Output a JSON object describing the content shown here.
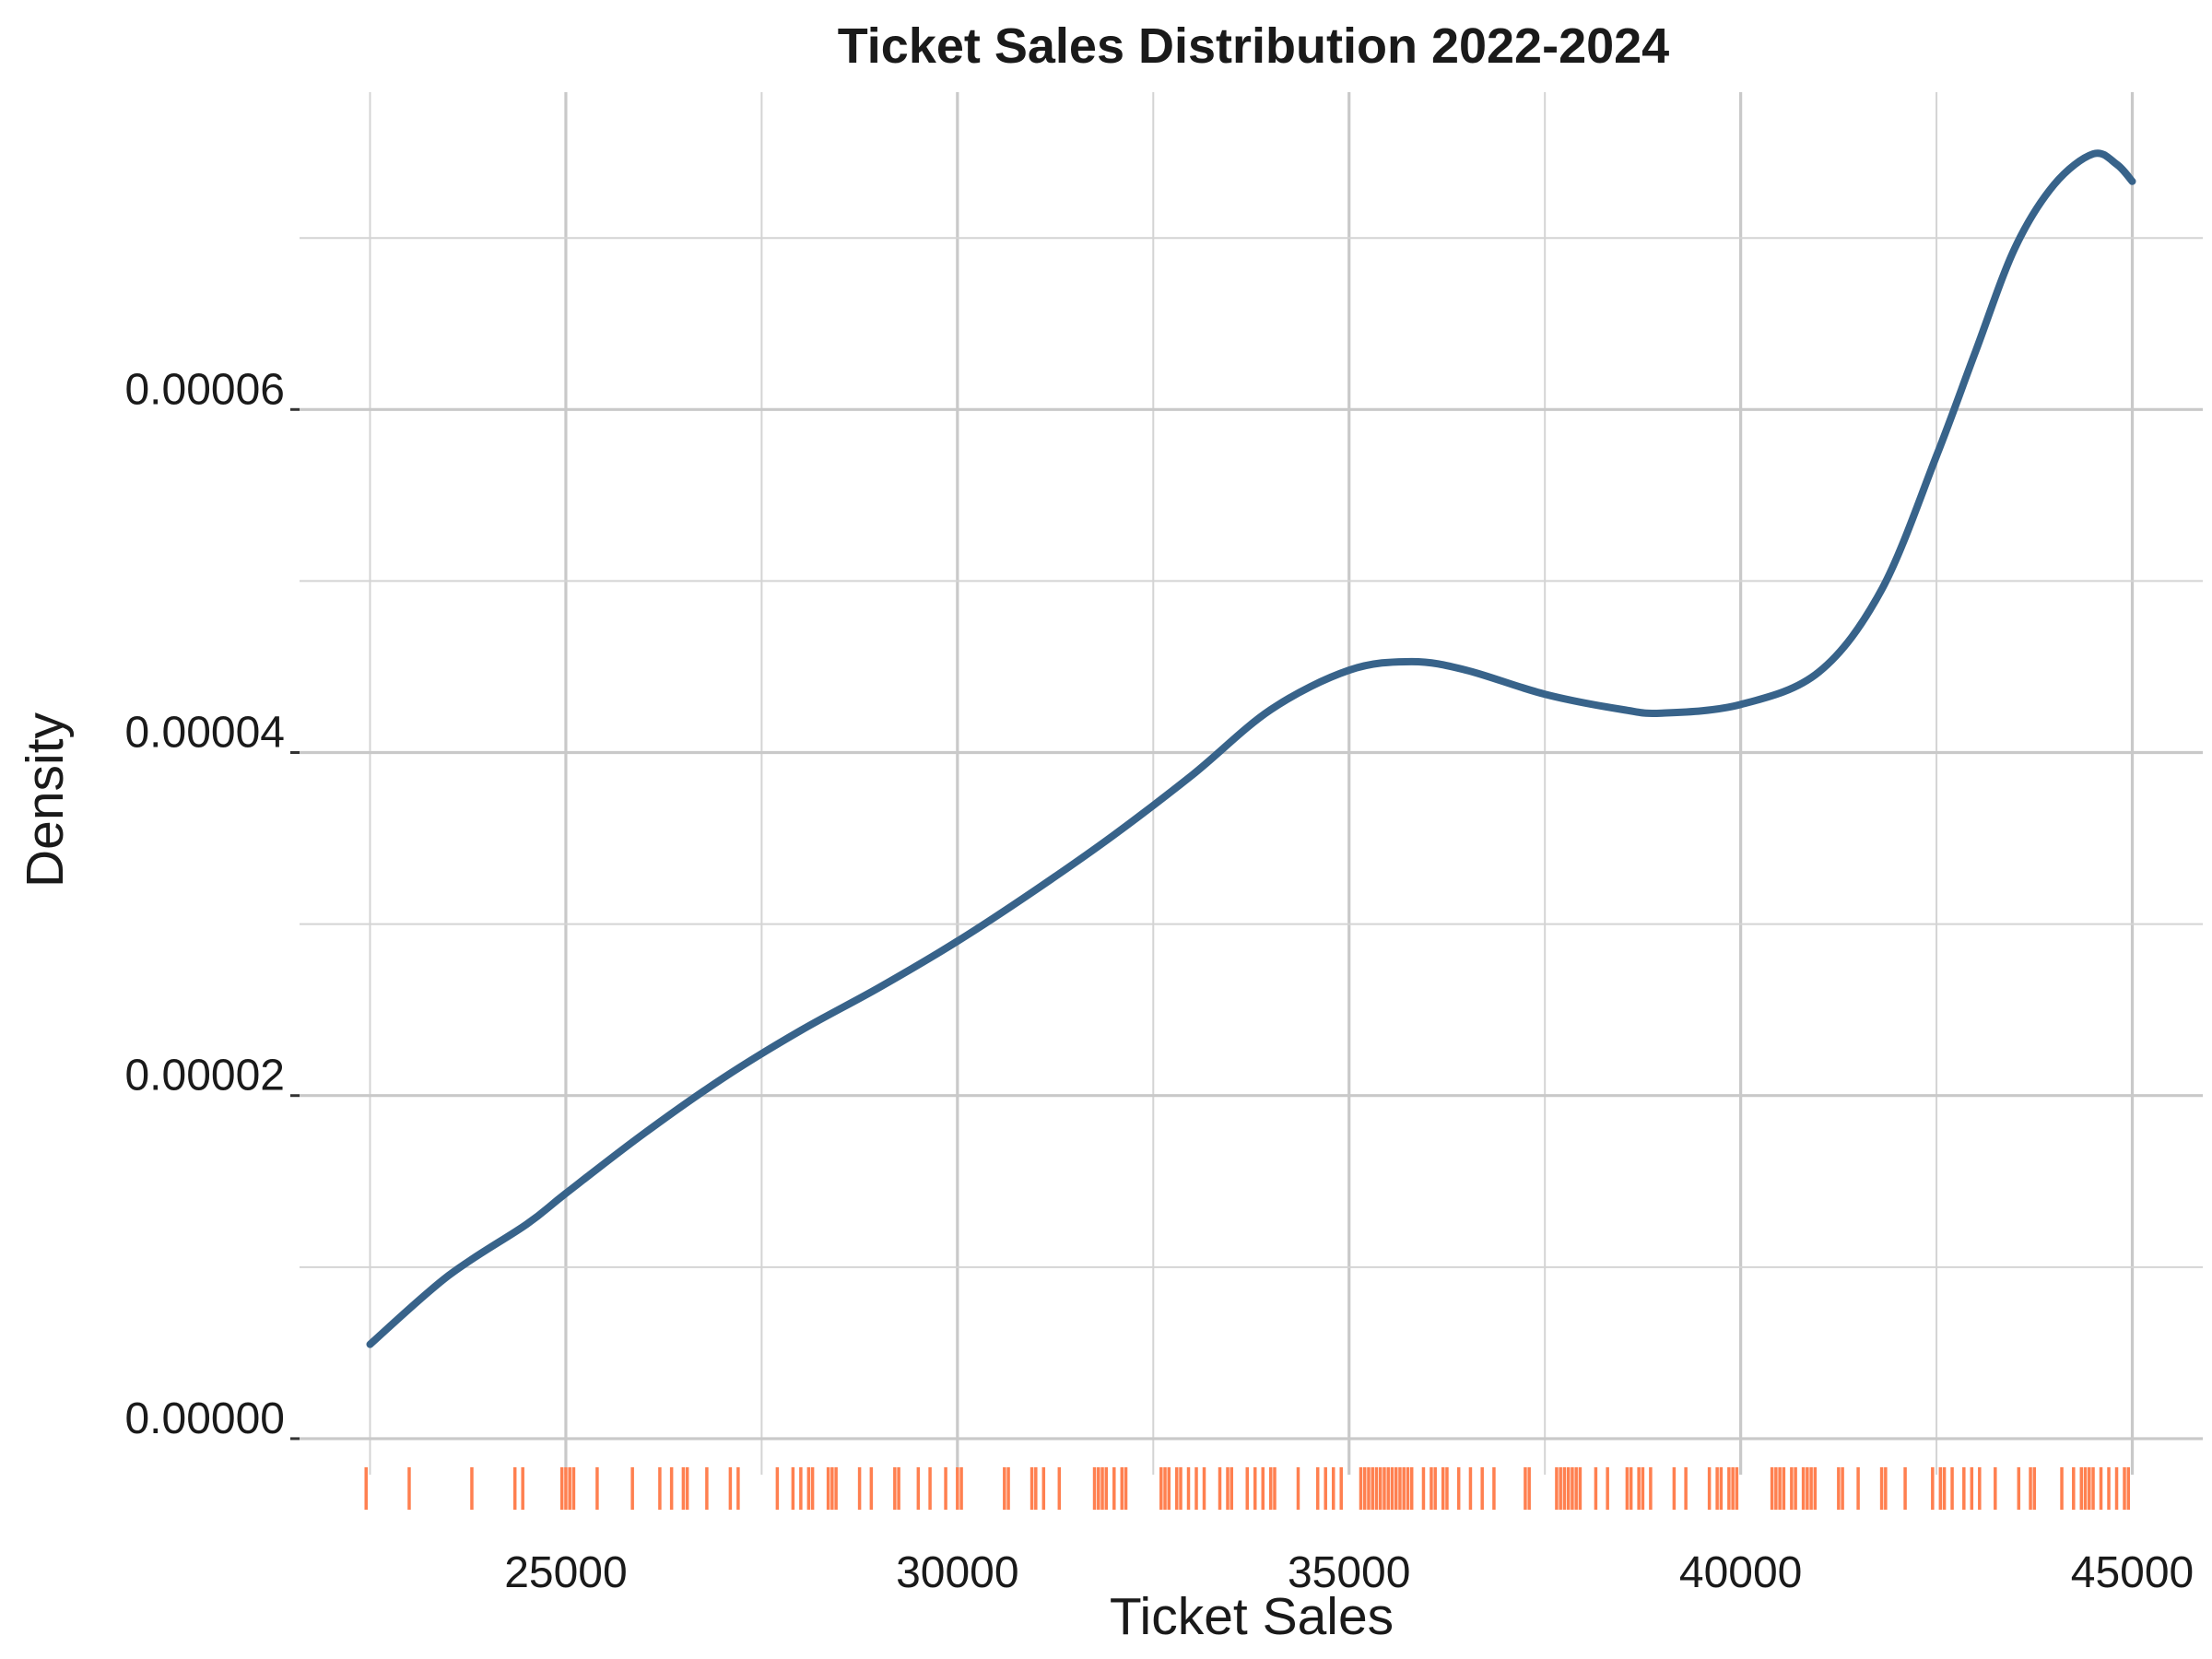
{
  "chart_data": {
    "type": "line",
    "title": "Ticket Sales Distribution 2022-2024",
    "xlabel": "Ticket Sales",
    "ylabel": "Density",
    "xlim": [
      21600,
      45900
    ],
    "ylim": [
      -2.1e-06,
      7.85e-05
    ],
    "x_ticks": [
      25000,
      30000,
      35000,
      40000,
      45000
    ],
    "x_tick_labels": [
      "25000",
      "30000",
      "35000",
      "40000",
      "45000"
    ],
    "x_minor_ticks": [
      22500,
      27500,
      32500,
      37500,
      42500
    ],
    "y_ticks": [
      0,
      2e-05,
      4e-05,
      6e-05
    ],
    "y_tick_labels": [
      "0.00000",
      "0.00002",
      "0.00004",
      "0.00006"
    ],
    "y_minor_ticks": [
      1e-05,
      3e-05,
      5e-05,
      7e-05
    ],
    "grid": true,
    "colors": {
      "line": "#38638a",
      "rug": "#ff8050"
    },
    "series": [
      {
        "x": [
          22500,
          23500,
          24500,
          25000,
          26000,
          27000,
          28000,
          29000,
          30000,
          31000,
          32000,
          33000,
          34000,
          35000,
          35800,
          36500,
          37500,
          38500,
          39000,
          40000,
          41000,
          41800,
          42500,
          43000,
          43500,
          44000,
          44500,
          44800,
          45000
        ],
        "y": [
          5.5e-06,
          9.5e-06,
          1.25e-05,
          1.43e-05,
          1.78e-05,
          2.1e-05,
          2.38e-05,
          2.63e-05,
          2.9e-05,
          3.2e-05,
          3.52e-05,
          3.87e-05,
          4.25e-05,
          4.48e-05,
          4.53e-05,
          4.48e-05,
          4.34e-05,
          4.25e-05,
          4.23e-05,
          4.28e-05,
          4.47e-05,
          4.95e-05,
          5.73e-05,
          6.34e-05,
          6.94e-05,
          7.31e-05,
          7.49e-05,
          7.43e-05,
          7.33e-05
        ]
      }
    ],
    "rug": [
      22450,
      23000,
      23800,
      24350,
      24450,
      24950,
      25000,
      25050,
      25100,
      25400,
      25850,
      26200,
      26350,
      26500,
      26550,
      26800,
      27100,
      27200,
      27700,
      27900,
      28000,
      28100,
      28150,
      28350,
      28400,
      28450,
      28750,
      28900,
      29200,
      29250,
      29500,
      29650,
      29850,
      30000,
      30050,
      30600,
      30650,
      30950,
      31000,
      31100,
      31300,
      31750,
      31800,
      31850,
      31900,
      32000,
      32100,
      32150,
      32600,
      32650,
      32700,
      32800,
      32850,
      32950,
      33050,
      33150,
      33350,
      33450,
      33500,
      33700,
      33800,
      33900,
      34000,
      34050,
      34350,
      34600,
      34700,
      34800,
      34900,
      35150,
      35200,
      35250,
      35300,
      35350,
      35400,
      35450,
      35500,
      35550,
      35600,
      35650,
      35700,
      35750,
      35800,
      35950,
      36050,
      36100,
      36200,
      36250,
      36400,
      36550,
      36700,
      36850,
      37250,
      37300,
      37650,
      37700,
      37750,
      37800,
      37850,
      37900,
      37950,
      38150,
      38300,
      38550,
      38600,
      38700,
      38750,
      38850,
      39150,
      39300,
      39600,
      39700,
      39750,
      39850,
      39900,
      39950,
      40400,
      40450,
      40500,
      40550,
      40650,
      40700,
      40800,
      40850,
      40900,
      40950,
      41250,
      41300,
      41500,
      41800,
      41850,
      42100,
      42450,
      42550,
      42600,
      42700,
      42850,
      42950,
      43050,
      43250,
      43550,
      43700,
      43750,
      44100,
      44250,
      44350,
      44400,
      44450,
      44500,
      44600,
      44700,
      44800,
      44900,
      44950
    ]
  }
}
